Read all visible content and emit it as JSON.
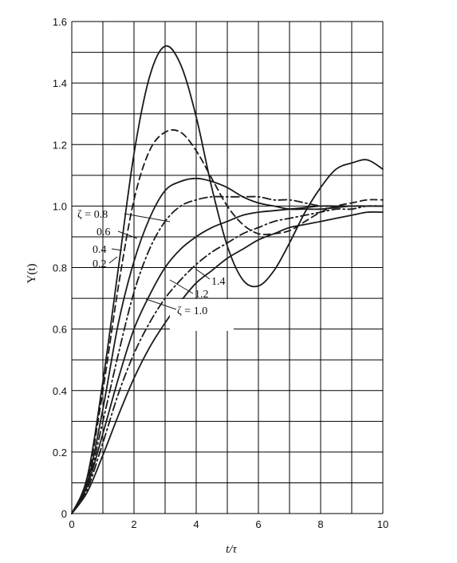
{
  "chart_data": {
    "type": "line",
    "title": "",
    "xlabel": "t/τ",
    "ylabel": "Y(t)",
    "xlim": [
      0,
      10
    ],
    "ylim": [
      0,
      1.6
    ],
    "xticks": [
      "0",
      "2",
      "4",
      "6",
      "8",
      "10"
    ],
    "yticks": [
      "0",
      "0.2",
      "0.4",
      "0.6",
      "0.8",
      "1.0",
      "1.2",
      "1.4",
      "1.6"
    ],
    "grid": true,
    "line_color": "#1a1a1a",
    "annotations": [
      "ζ = 0.8",
      "0.6",
      "0.4",
      "0.2",
      "1.4",
      "1.2",
      "ζ = 1.0"
    ],
    "series": [
      {
        "name": "0.2",
        "style": "solid",
        "damping": 0.2,
        "x": [
          0,
          0.5,
          1,
          1.5,
          2,
          2.5,
          3,
          3.5,
          4,
          4.5,
          5,
          5.5,
          6,
          6.5,
          7,
          7.5,
          8,
          8.5,
          9,
          9.5,
          10
        ],
        "y": [
          0,
          0.12,
          0.43,
          0.8,
          1.17,
          1.42,
          1.52,
          1.46,
          1.29,
          1.06,
          0.87,
          0.76,
          0.74,
          0.79,
          0.88,
          0.98,
          1.06,
          1.12,
          1.14,
          1.15,
          1.12
        ]
      },
      {
        "name": "0.4",
        "style": "dashed",
        "damping": 0.4,
        "x": [
          0,
          0.5,
          1,
          1.5,
          2,
          2.5,
          3,
          3.5,
          4,
          4.5,
          5,
          5.5,
          6,
          6.5,
          7,
          7.5,
          8,
          8.5,
          9,
          9.5,
          10
        ],
        "y": [
          0,
          0.11,
          0.4,
          0.74,
          1.02,
          1.18,
          1.24,
          1.24,
          1.18,
          1.09,
          1.0,
          0.94,
          0.91,
          0.91,
          0.92,
          0.95,
          0.98,
          1.0,
          1.01,
          1.02,
          1.02
        ]
      },
      {
        "name": "ζ = 0.8",
        "style": "solid",
        "damping": 0.8,
        "x": [
          0,
          0.5,
          1,
          1.5,
          2,
          2.5,
          3,
          3.5,
          4,
          4.5,
          5,
          5.5,
          6,
          6.5,
          7,
          7.5,
          8,
          8.5,
          9,
          9.5,
          10
        ],
        "y": [
          0,
          0.1,
          0.34,
          0.62,
          0.82,
          0.96,
          1.05,
          1.08,
          1.09,
          1.08,
          1.06,
          1.03,
          1.01,
          1.0,
          0.99,
          0.99,
          0.99,
          0.995,
          1.0,
          1.0,
          1.0
        ]
      },
      {
        "name": "0.6",
        "style": "dash-dot",
        "damping": 0.6,
        "x": [
          0,
          0.5,
          1,
          1.5,
          2,
          2.5,
          3,
          3.5,
          4,
          4.5,
          5,
          5.5,
          6,
          6.5,
          7,
          7.5,
          8,
          8.5,
          9,
          9.5,
          10
        ],
        "y": [
          0,
          0.09,
          0.3,
          0.52,
          0.72,
          0.86,
          0.95,
          1.0,
          1.02,
          1.03,
          1.03,
          1.03,
          1.03,
          1.02,
          1.02,
          1.01,
          1.0,
          1.0,
          1.0,
          1.0,
          1.0
        ]
      },
      {
        "name": "ζ = 1.0",
        "style": "solid",
        "damping": 1.0,
        "x": [
          0,
          0.5,
          1,
          1.5,
          2,
          2.5,
          3,
          3.5,
          4,
          4.5,
          5,
          5.5,
          6,
          6.5,
          7,
          7.5,
          8,
          8.5,
          9,
          9.5,
          10
        ],
        "y": [
          0,
          0.09,
          0.26,
          0.44,
          0.6,
          0.71,
          0.8,
          0.86,
          0.9,
          0.93,
          0.95,
          0.97,
          0.98,
          0.985,
          0.99,
          0.995,
          1.0,
          1.0,
          1.0,
          1.0,
          1.0
        ]
      },
      {
        "name": "1.2",
        "style": "dash-dot",
        "damping": 1.2,
        "x": [
          0,
          0.5,
          1,
          1.5,
          2,
          2.5,
          3,
          3.5,
          4,
          4.5,
          5,
          5.5,
          6,
          6.5,
          7,
          7.5,
          8,
          8.5,
          9,
          9.5,
          10
        ],
        "y": [
          0,
          0.08,
          0.23,
          0.39,
          0.52,
          0.62,
          0.7,
          0.76,
          0.81,
          0.85,
          0.88,
          0.91,
          0.93,
          0.95,
          0.96,
          0.97,
          0.98,
          0.99,
          0.99,
          1.0,
          1.0
        ]
      },
      {
        "name": "1.4",
        "style": "solid",
        "damping": 1.4,
        "x": [
          0,
          0.5,
          1,
          1.5,
          2,
          2.5,
          3,
          3.5,
          4,
          4.5,
          5,
          5.5,
          6,
          6.5,
          7,
          7.5,
          8,
          8.5,
          9,
          9.5,
          10
        ],
        "y": [
          0,
          0.07,
          0.19,
          0.32,
          0.44,
          0.54,
          0.62,
          0.69,
          0.75,
          0.79,
          0.83,
          0.86,
          0.89,
          0.91,
          0.93,
          0.94,
          0.95,
          0.96,
          0.97,
          0.98,
          0.98
        ]
      }
    ]
  }
}
